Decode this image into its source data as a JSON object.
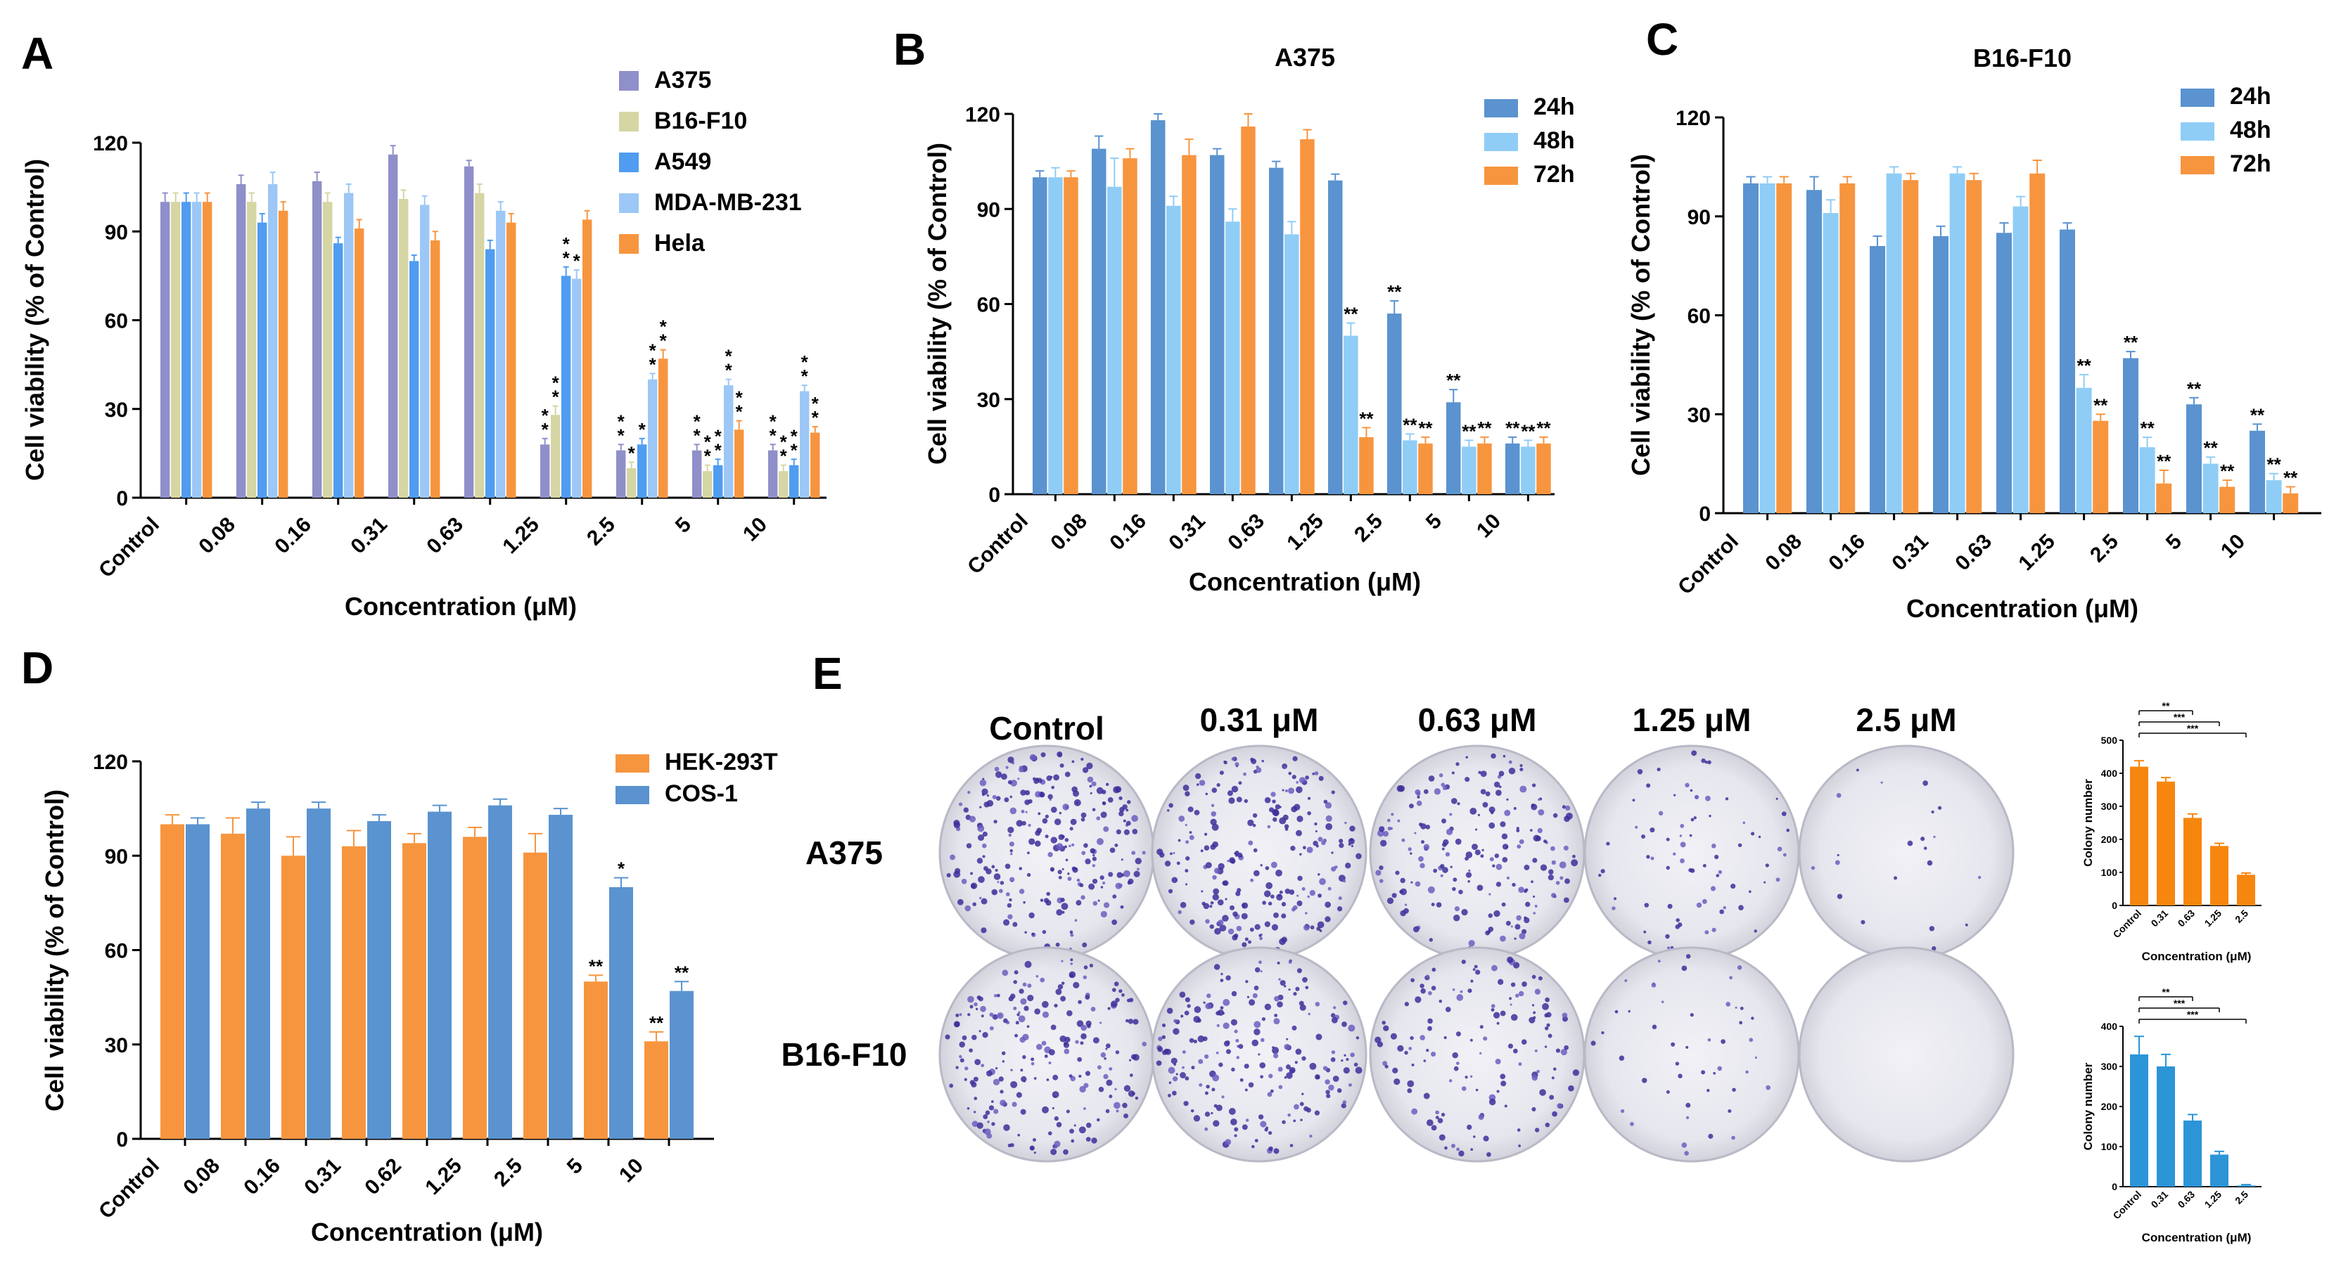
{
  "colors": {
    "A375": "#8f8fca",
    "B16-F10": "#d6d6a4",
    "A549": "#4f9cf0",
    "MDA-MB-231": "#9cc7f6",
    "Hela": "#f7953f",
    "24h": "#5a93cf",
    "48h": "#8fcdf6",
    "72h": "#f7953f",
    "HEK-293T": "#f7953f",
    "COS-1": "#5a93cf",
    "colonyA375": "#f7860f",
    "colonyB16": "#2b95d8"
  },
  "chart_data": [
    {
      "id": "A",
      "panel_label": "A",
      "type": "bar",
      "title": "",
      "xlabel": "Concentration (μM)",
      "ylabel": "Cell viability (% of Control)",
      "categories": [
        "Control",
        "0.08",
        "0.16",
        "0.31",
        "0.63",
        "1.25",
        "2.5",
        "5",
        "10"
      ],
      "ylim": [
        0,
        120
      ],
      "yticks": [
        "0",
        "30",
        "60",
        "90",
        "120"
      ],
      "legend_position": "top-right",
      "series": [
        {
          "name": "A375",
          "values": [
            100,
            106,
            107,
            116,
            112,
            18,
            16,
            16,
            16
          ],
          "errors": [
            3,
            3,
            3,
            3,
            2,
            2,
            2,
            2,
            2
          ],
          "sig": [
            "",
            "",
            "",
            "",
            "",
            "**",
            "**",
            "**",
            "**"
          ]
        },
        {
          "name": "B16-F10",
          "values": [
            100,
            100,
            100,
            101,
            103,
            28,
            10,
            9,
            9
          ],
          "errors": [
            3,
            3,
            3,
            3,
            3,
            3,
            2,
            2,
            2
          ],
          "sig": [
            "",
            "",
            "",
            "",
            "",
            "**",
            "*",
            "**",
            "**"
          ]
        },
        {
          "name": "A549",
          "values": [
            100,
            93,
            86,
            80,
            84,
            75,
            18,
            11,
            11
          ],
          "errors": [
            3,
            3,
            2,
            2,
            3,
            3,
            2,
            2,
            2
          ],
          "sig": [
            "",
            "",
            "",
            "",
            "",
            "**",
            "*",
            "**",
            "**"
          ]
        },
        {
          "name": "MDA-MB-231",
          "values": [
            100,
            106,
            103,
            99,
            97,
            74,
            40,
            38,
            36
          ],
          "errors": [
            3,
            4,
            3,
            3,
            3,
            3,
            2,
            2,
            2
          ],
          "sig": [
            "",
            "",
            "",
            "",
            "",
            "*",
            "**",
            "**",
            "**"
          ]
        },
        {
          "name": "Hela",
          "values": [
            100,
            97,
            91,
            87,
            93,
            94,
            47,
            23,
            22
          ],
          "errors": [
            3,
            3,
            3,
            3,
            3,
            3,
            3,
            3,
            2
          ],
          "sig": [
            "",
            "",
            "",
            "",
            "",
            "",
            "**",
            "**",
            "**"
          ]
        }
      ]
    },
    {
      "id": "B",
      "panel_label": "B",
      "type": "bar",
      "title": "A375",
      "xlabel": "Concentration (μM)",
      "ylabel": "Cell viability (% of Control)",
      "categories": [
        "Control",
        "0.08",
        "0.16",
        "0.31",
        "0.63",
        "1.25",
        "2.5",
        "5",
        "10"
      ],
      "ylim": [
        0,
        120
      ],
      "yticks": [
        "0",
        "30",
        "60",
        "90",
        "120"
      ],
      "legend_position": "top-right",
      "series": [
        {
          "name": "24h",
          "values": [
            100,
            109,
            118,
            107,
            103,
            99,
            57,
            29,
            16
          ],
          "errors": [
            2,
            4,
            2,
            2,
            2,
            2,
            4,
            4,
            2
          ],
          "sig": [
            "",
            "",
            "",
            "",
            "",
            "",
            "**",
            "**",
            "**"
          ]
        },
        {
          "name": "48h",
          "values": [
            100,
            97,
            91,
            86,
            82,
            50,
            17,
            15,
            15
          ],
          "errors": [
            3,
            9,
            3,
            4,
            4,
            4,
            2,
            2,
            2
          ],
          "sig": [
            "",
            "",
            "",
            "",
            "",
            "**",
            "**",
            "**",
            "**"
          ]
        },
        {
          "name": "72h",
          "values": [
            100,
            106,
            107,
            116,
            112,
            18,
            16,
            16,
            16
          ],
          "errors": [
            2,
            3,
            5,
            4,
            3,
            3,
            2,
            2,
            2
          ],
          "sig": [
            "",
            "",
            "",
            "",
            "",
            "**",
            "**",
            "**",
            "**"
          ]
        }
      ]
    },
    {
      "id": "C",
      "panel_label": "C",
      "type": "bar",
      "title": "B16-F10",
      "xlabel": "Concentration (μM)",
      "ylabel": "Cell viability (% of Control)",
      "categories": [
        "Control",
        "0.08",
        "0.16",
        "0.31",
        "0.63",
        "1.25",
        "2.5",
        "5",
        "10"
      ],
      "ylim": [
        0,
        120
      ],
      "yticks": [
        "0",
        "30",
        "60",
        "90",
        "120"
      ],
      "legend_position": "top-right",
      "series": [
        {
          "name": "24h",
          "values": [
            100,
            98,
            81,
            84,
            85,
            86,
            47,
            33,
            25
          ],
          "errors": [
            2,
            4,
            3,
            3,
            3,
            2,
            2,
            2,
            2
          ],
          "sig": [
            "",
            "",
            "",
            "",
            "",
            "",
            "**",
            "**",
            "**"
          ]
        },
        {
          "name": "48h",
          "values": [
            100,
            91,
            103,
            103,
            93,
            38,
            20,
            15,
            10
          ],
          "errors": [
            2,
            4,
            2,
            2,
            3,
            4,
            3,
            2,
            2
          ],
          "sig": [
            "",
            "",
            "",
            "",
            "",
            "**",
            "**",
            "**",
            "**"
          ]
        },
        {
          "name": "72h",
          "values": [
            100,
            100,
            101,
            101,
            103,
            28,
            9,
            8,
            6
          ],
          "errors": [
            2,
            2,
            2,
            2,
            4,
            2,
            4,
            2,
            2
          ],
          "sig": [
            "",
            "",
            "",
            "",
            "",
            "**",
            "**",
            "**",
            "**"
          ]
        }
      ]
    },
    {
      "id": "D",
      "panel_label": "D",
      "type": "bar",
      "title": "",
      "xlabel": "Concentration (μM)",
      "ylabel": "Cell viability (% of Control)",
      "categories": [
        "Control",
        "0.08",
        "0.16",
        "0.31",
        "0.62",
        "1.25",
        "2.5",
        "5",
        "10"
      ],
      "ylim": [
        0,
        120
      ],
      "yticks": [
        "0",
        "30",
        "60",
        "90",
        "120"
      ],
      "legend_position": "top-right",
      "series": [
        {
          "name": "HEK-293T",
          "values": [
            100,
            97,
            90,
            93,
            94,
            96,
            91,
            50,
            31
          ],
          "errors": [
            3,
            5,
            6,
            5,
            3,
            3,
            6,
            2,
            3
          ],
          "sig": [
            "",
            "",
            "",
            "",
            "",
            "",
            "",
            "**",
            "**"
          ]
        },
        {
          "name": "COS-1",
          "values": [
            100,
            105,
            105,
            101,
            104,
            106,
            103,
            80,
            47
          ],
          "errors": [
            2,
            2,
            2,
            2,
            2,
            2,
            2,
            3,
            3
          ],
          "sig": [
            "",
            "",
            "",
            "",
            "",
            "",
            "",
            "*",
            "**"
          ]
        }
      ]
    },
    {
      "id": "E1",
      "type": "bar",
      "title": "",
      "xlabel": "Concentration (μM)",
      "ylabel": "Colony number",
      "categories": [
        "Control",
        "0.31",
        "0.63",
        "1.25",
        "2.5"
      ],
      "ylim": [
        0,
        500
      ],
      "yticks": [
        "0",
        "100",
        "200",
        "300",
        "400",
        "500"
      ],
      "values": [
        420,
        375,
        265,
        180,
        93
      ],
      "errors": [
        18,
        12,
        12,
        8,
        5
      ],
      "comparisons": [
        {
          "to": 2,
          "label": "**"
        },
        {
          "to": 3,
          "label": "***"
        },
        {
          "to": 4,
          "label": "***"
        }
      ]
    },
    {
      "id": "E2",
      "type": "bar",
      "title": "",
      "xlabel": "Concentration (μM)",
      "ylabel": "Colony number",
      "categories": [
        "Control",
        "0.31",
        "0.63",
        "1.25",
        "2.5"
      ],
      "ylim": [
        0,
        400
      ],
      "yticks": [
        "0",
        "100",
        "200",
        "300",
        "400"
      ],
      "values": [
        330,
        300,
        165,
        80,
        3
      ],
      "errors": [
        45,
        30,
        15,
        8,
        2
      ],
      "comparisons": [
        {
          "to": 2,
          "label": "**"
        },
        {
          "to": 3,
          "label": "***"
        },
        {
          "to": 4,
          "label": "***"
        }
      ]
    }
  ],
  "panelE": {
    "label": "E",
    "concentrations": [
      "Control",
      "0.31 μM",
      "0.63 μM",
      "1.25 μM",
      "2.5 μM"
    ],
    "rows": [
      "A375",
      "B16-F10"
    ],
    "colony_density": [
      [
        1.0,
        0.9,
        0.75,
        0.3,
        0.08
      ],
      [
        0.85,
        0.8,
        0.55,
        0.18,
        0.0
      ]
    ]
  }
}
